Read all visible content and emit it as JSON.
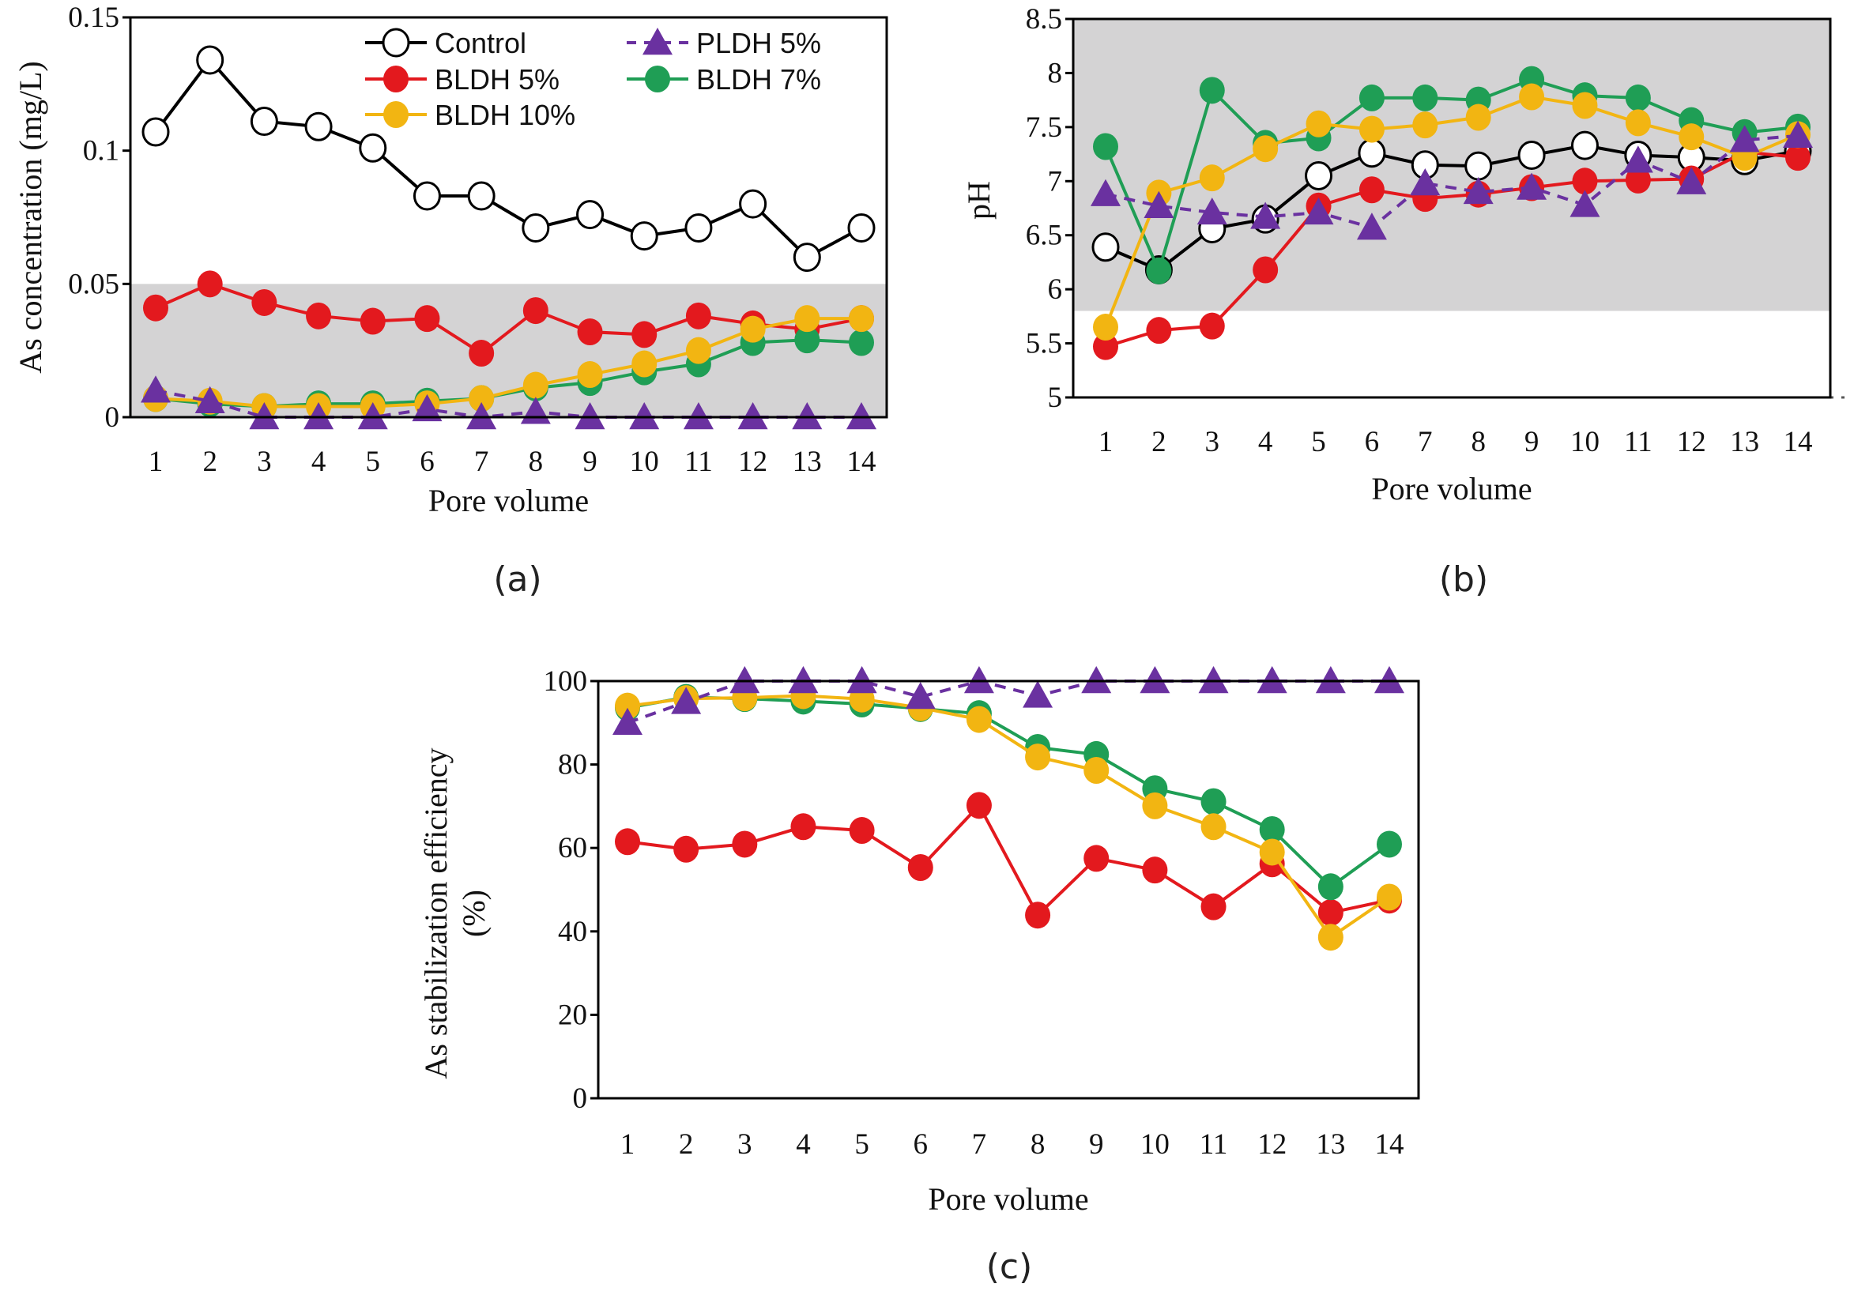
{
  "colors": {
    "Control": "#000000",
    "BLDH 5%": "#e3191e",
    "BLDH 7%": "#1f9e55",
    "BLDH 10%": "#f2b512",
    "PLDH 5%": "#6a31a0",
    "shade": "#d4d3d4"
  },
  "chart_data": [
    {
      "id": "a",
      "type": "line",
      "caption": "(a)",
      "xlabel": "Pore volume",
      "ylabel": "As concentration (mg/L)",
      "x": [
        1,
        2,
        3,
        4,
        5,
        6,
        7,
        8,
        9,
        10,
        11,
        12,
        13,
        14
      ],
      "ylim": [
        0,
        0.15
      ],
      "yticks": [
        0,
        0.05,
        0.1,
        0.15
      ],
      "ytick_labels": [
        "0",
        "0.05",
        "0.1",
        "0.15"
      ],
      "shaded_band": [
        0,
        0.05
      ],
      "legend": {
        "position": "top-right",
        "entries": [
          "Control",
          "PLDH 5%",
          "BLDH 5%",
          "BLDH 7%",
          "BLDH 10%"
        ]
      },
      "series": [
        {
          "name": "Control",
          "marker": "open-circle",
          "dashed": false,
          "values": [
            0.107,
            0.134,
            0.111,
            0.109,
            0.101,
            0.083,
            0.083,
            0.071,
            0.076,
            0.068,
            0.071,
            0.08,
            0.06,
            0.071
          ]
        },
        {
          "name": "BLDH 5%",
          "marker": "circle",
          "dashed": false,
          "values": [
            0.041,
            0.05,
            0.043,
            0.038,
            0.036,
            0.037,
            0.024,
            0.04,
            0.032,
            0.031,
            0.038,
            0.035,
            0.033,
            0.037
          ]
        },
        {
          "name": "BLDH 7%",
          "marker": "circle",
          "dashed": false,
          "values": [
            0.007,
            0.005,
            0.004,
            0.005,
            0.005,
            0.006,
            0.007,
            0.011,
            0.013,
            0.017,
            0.02,
            0.028,
            0.029,
            0.028
          ]
        },
        {
          "name": "BLDH 10%",
          "marker": "circle",
          "dashed": false,
          "values": [
            0.007,
            0.006,
            0.004,
            0.004,
            0.004,
            0.005,
            0.007,
            0.012,
            0.016,
            0.02,
            0.025,
            0.033,
            0.037,
            0.037
          ]
        },
        {
          "name": "PLDH 5%",
          "marker": "triangle",
          "dashed": true,
          "values": [
            0.01,
            0.006,
            0.0,
            0.0,
            0.0,
            0.003,
            0.0,
            0.002,
            0.0,
            0.0,
            0.0,
            0.0,
            0.0,
            0.0
          ]
        }
      ]
    },
    {
      "id": "b",
      "type": "line",
      "caption": "(b)",
      "xlabel": "Pore volume",
      "ylabel": "pH",
      "x": [
        1,
        2,
        3,
        4,
        5,
        6,
        7,
        8,
        9,
        10,
        11,
        12,
        13,
        14
      ],
      "ylim": [
        5,
        8.5
      ],
      "yticks": [
        5,
        5.5,
        6,
        6.5,
        7,
        7.5,
        8,
        8.5
      ],
      "ytick_labels": [
        "5",
        "5.5",
        "6",
        "6.5",
        "7",
        "7.5",
        "8",
        "8.5"
      ],
      "shaded_band": [
        5.8,
        8.5
      ],
      "series": [
        {
          "name": "Control",
          "marker": "open-circle",
          "dashed": false,
          "values": [
            6.39,
            6.18,
            6.56,
            6.65,
            7.05,
            7.26,
            7.15,
            7.14,
            7.24,
            7.33,
            7.24,
            7.22,
            7.19,
            7.28
          ]
        },
        {
          "name": "BLDH 5%",
          "marker": "circle",
          "dashed": false,
          "values": [
            5.47,
            5.62,
            5.66,
            6.18,
            6.77,
            6.92,
            6.84,
            6.88,
            6.94,
            7.0,
            7.01,
            7.02,
            7.27,
            7.22
          ]
        },
        {
          "name": "BLDH 7%",
          "marker": "circle",
          "dashed": false,
          "values": [
            7.32,
            6.17,
            7.84,
            7.35,
            7.4,
            7.77,
            7.77,
            7.75,
            7.94,
            7.79,
            7.77,
            7.56,
            7.45,
            7.5
          ]
        },
        {
          "name": "BLDH 10%",
          "marker": "circle",
          "dashed": false,
          "values": [
            5.65,
            6.89,
            7.03,
            7.3,
            7.53,
            7.48,
            7.52,
            7.59,
            7.78,
            7.7,
            7.54,
            7.41,
            7.22,
            7.43
          ]
        },
        {
          "name": "PLDH 5%",
          "marker": "triangle",
          "dashed": true,
          "values": [
            6.88,
            6.77,
            6.71,
            6.67,
            6.71,
            6.57,
            6.98,
            6.9,
            6.94,
            6.78,
            7.19,
            6.99,
            7.38,
            7.42
          ]
        }
      ]
    },
    {
      "id": "c",
      "type": "line",
      "caption": "(c)",
      "xlabel": "Pore volume",
      "ylabel": "As stabilization efficiency (%)",
      "x": [
        1,
        2,
        3,
        4,
        5,
        6,
        7,
        8,
        9,
        10,
        11,
        12,
        13,
        14
      ],
      "ylim": [
        0,
        100
      ],
      "yticks": [
        0,
        20,
        40,
        60,
        80,
        100
      ],
      "ytick_labels": [
        "0",
        "20",
        "40",
        "60",
        "80",
        "100"
      ],
      "series": [
        {
          "name": "BLDH 5%",
          "marker": "circle",
          "dashed": false,
          "values": [
            61.5,
            59.7,
            60.9,
            65.1,
            64.2,
            55.3,
            70.2,
            43.9,
            57.5,
            54.7,
            45.9,
            56.2,
            44.5,
            47.5
          ]
        },
        {
          "name": "BLDH 7%",
          "marker": "circle",
          "dashed": false,
          "values": [
            93.6,
            96.1,
            95.8,
            95.2,
            94.5,
            93.4,
            92.2,
            84.1,
            82.4,
            74.2,
            71.1,
            64.4,
            50.7,
            60.9
          ]
        },
        {
          "name": "BLDH 10%",
          "marker": "circle",
          "dashed": false,
          "values": [
            94.0,
            95.8,
            96.0,
            96.5,
            95.7,
            93.6,
            90.8,
            81.8,
            78.6,
            70.1,
            65.1,
            59.0,
            38.6,
            48.2
          ]
        },
        {
          "name": "PLDH 5%",
          "marker": "triangle",
          "dashed": true,
          "values": [
            90.0,
            95.0,
            100,
            100,
            100,
            96.2,
            100,
            96.5,
            100,
            100,
            100,
            100,
            100,
            100
          ]
        }
      ]
    }
  ]
}
